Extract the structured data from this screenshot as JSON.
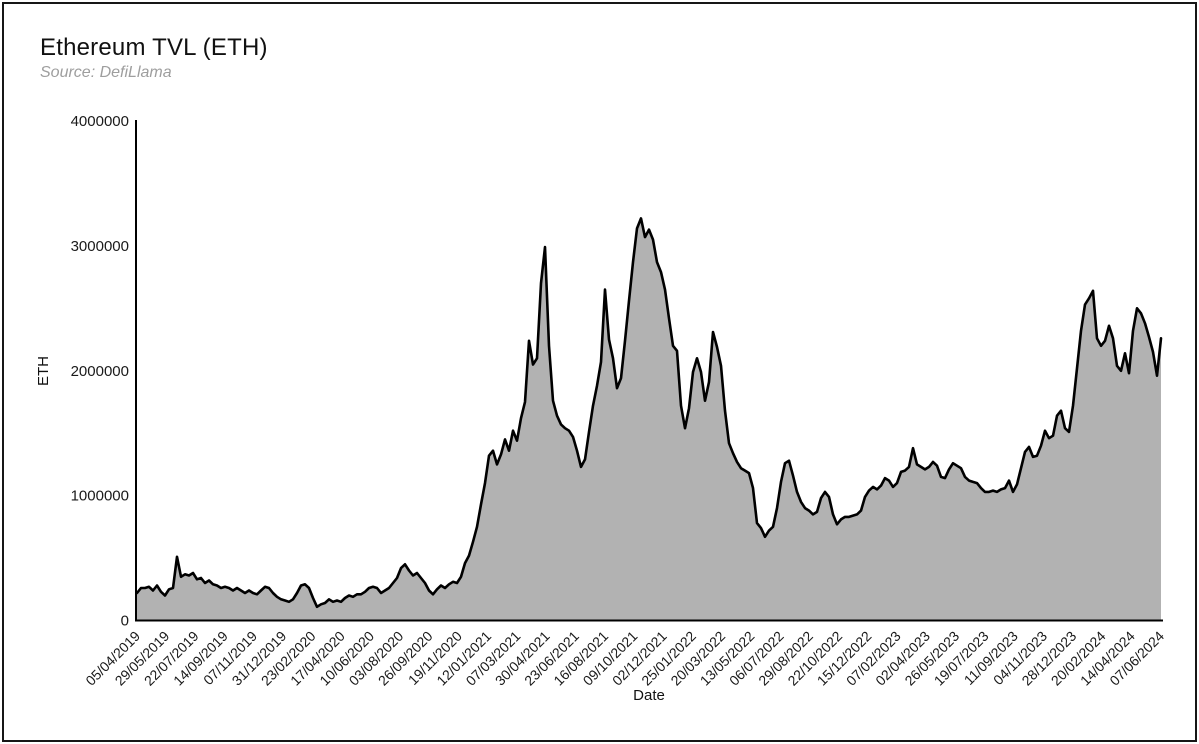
{
  "chart_data": {
    "type": "area",
    "title": "Ethereum TVL (ETH)",
    "subtitle": "Source: DefiLlama",
    "xlabel": "Date",
    "ylabel": "ETH",
    "ylim": [
      0,
      4000000
    ],
    "grid": false,
    "legend": false,
    "line_color": "#000000",
    "fill_color": "#b2b2b2",
    "axis_color": "#000000",
    "y_tick_labels": [
      "0",
      "1000000",
      "2000000",
      "3000000",
      "4000000"
    ],
    "x_tick_labels": [
      "05/04/2019",
      "29/05/2019",
      "22/07/2019",
      "14/09/2019",
      "07/11/2019",
      "31/12/2019",
      "23/02/2020",
      "17/04/2020",
      "10/06/2020",
      "03/08/2020",
      "26/09/2020",
      "19/11/2020",
      "12/01/2021",
      "07/03/2021",
      "30/04/2021",
      "23/06/2021",
      "16/08/2021",
      "09/10/2021",
      "02/12/2021",
      "25/01/2022",
      "20/03/2022",
      "13/05/2022",
      "06/07/2022",
      "29/08/2022",
      "22/10/2022",
      "15/12/2022",
      "07/02/2023",
      "02/04/2023",
      "26/05/2023",
      "19/07/2023",
      "11/09/2023",
      "04/11/2023",
      "28/12/2023",
      "20/02/2024",
      "14/04/2024",
      "07/06/2024"
    ],
    "date_format": "DD/MM/YYYY",
    "x_start_date": "05/04/2019",
    "x_end_date": "07/06/2024",
    "sampling": "uniform-in-time between x_start_date and x_end_date",
    "values_unit": "million ETH",
    "values_million_eth": [
      0.22,
      0.26,
      0.26,
      0.27,
      0.24,
      0.28,
      0.23,
      0.2,
      0.25,
      0.26,
      0.51,
      0.35,
      0.37,
      0.36,
      0.38,
      0.33,
      0.34,
      0.3,
      0.32,
      0.29,
      0.28,
      0.26,
      0.27,
      0.26,
      0.24,
      0.26,
      0.24,
      0.22,
      0.24,
      0.22,
      0.21,
      0.24,
      0.27,
      0.26,
      0.22,
      0.19,
      0.17,
      0.16,
      0.15,
      0.17,
      0.22,
      0.28,
      0.29,
      0.26,
      0.18,
      0.11,
      0.13,
      0.14,
      0.17,
      0.15,
      0.16,
      0.15,
      0.18,
      0.2,
      0.19,
      0.21,
      0.21,
      0.23,
      0.26,
      0.27,
      0.26,
      0.22,
      0.24,
      0.26,
      0.3,
      0.34,
      0.42,
      0.45,
      0.4,
      0.36,
      0.38,
      0.34,
      0.3,
      0.24,
      0.21,
      0.25,
      0.28,
      0.26,
      0.29,
      0.31,
      0.3,
      0.35,
      0.46,
      0.52,
      0.63,
      0.75,
      0.93,
      1.1,
      1.32,
      1.36,
      1.25,
      1.33,
      1.45,
      1.36,
      1.52,
      1.44,
      1.62,
      1.75,
      2.24,
      2.05,
      2.1,
      2.7,
      2.99,
      2.2,
      1.76,
      1.64,
      1.57,
      1.54,
      1.52,
      1.47,
      1.36,
      1.23,
      1.29,
      1.51,
      1.72,
      1.88,
      2.07,
      2.65,
      2.25,
      2.1,
      1.86,
      1.94,
      2.24,
      2.56,
      2.87,
      3.14,
      3.22,
      3.07,
      3.13,
      3.05,
      2.87,
      2.79,
      2.65,
      2.42,
      2.2,
      2.16,
      1.72,
      1.54,
      1.7,
      1.99,
      2.1,
      1.99,
      1.76,
      1.91,
      2.31,
      2.19,
      2.04,
      1.68,
      1.42,
      1.34,
      1.27,
      1.22,
      1.2,
      1.18,
      1.06,
      0.78,
      0.74,
      0.67,
      0.72,
      0.75,
      0.9,
      1.11,
      1.26,
      1.28,
      1.16,
      1.03,
      0.95,
      0.9,
      0.88,
      0.85,
      0.87,
      0.98,
      1.03,
      0.99,
      0.85,
      0.77,
      0.81,
      0.83,
      0.83,
      0.84,
      0.85,
      0.88,
      0.99,
      1.04,
      1.07,
      1.05,
      1.08,
      1.14,
      1.12,
      1.07,
      1.1,
      1.19,
      1.2,
      1.23,
      1.38,
      1.25,
      1.23,
      1.21,
      1.23,
      1.27,
      1.24,
      1.15,
      1.14,
      1.21,
      1.26,
      1.24,
      1.22,
      1.15,
      1.12,
      1.11,
      1.1,
      1.06,
      1.03,
      1.03,
      1.04,
      1.03,
      1.05,
      1.06,
      1.12,
      1.03,
      1.09,
      1.22,
      1.35,
      1.39,
      1.31,
      1.32,
      1.4,
      1.52,
      1.46,
      1.48,
      1.64,
      1.68,
      1.54,
      1.51,
      1.72,
      2.02,
      2.32,
      2.53,
      2.58,
      2.64,
      2.26,
      2.2,
      2.24,
      2.36,
      2.26,
      2.04,
      2.0,
      2.14,
      1.98,
      2.32,
      2.5,
      2.46,
      2.38,
      2.27,
      2.15,
      1.96,
      2.26
    ]
  }
}
